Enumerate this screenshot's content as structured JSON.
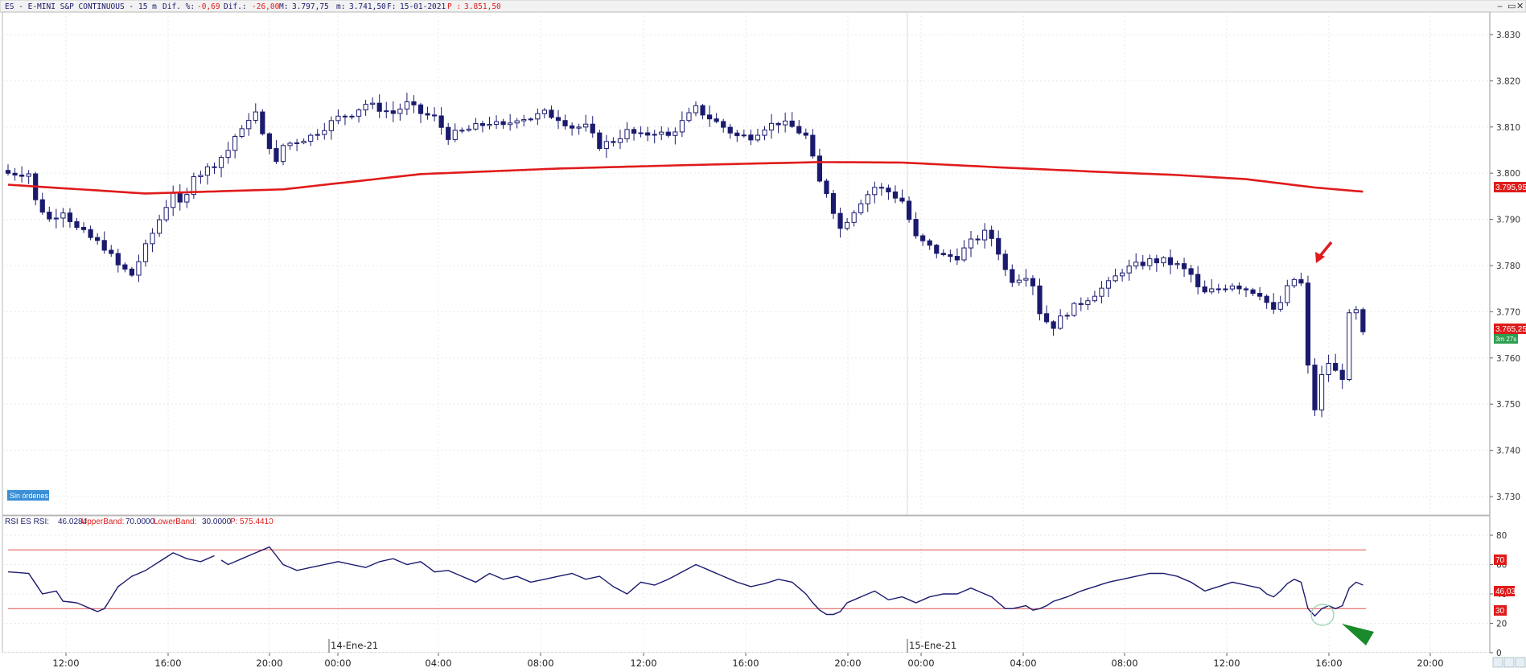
{
  "header": {
    "symbol": "ES - E-MINI S&P CONTINUOUS -",
    "interval": "15 m",
    "dif_pct_label": "Dif. %:",
    "dif_pct_value": "-0,69",
    "dif_label": "Dif.:",
    "dif_value": "-26,00",
    "max_label": "M:",
    "max_value": "3.797,75",
    "min_label": "m:",
    "min_value": "3.741,50",
    "date_label": "F:",
    "date_value": "15-01-2021",
    "close_label": "P :",
    "close_value": "3.851,50"
  },
  "badges": {
    "orders": "Sin órdenes",
    "ma_value": "3.795,95",
    "price_value": "3.765,25",
    "countdown": "3m 27s",
    "rsi_value": "46,03",
    "rsi_upper": "70",
    "rsi_lower": "30"
  },
  "rsi_header": {
    "name": "RSI ES RSI:",
    "value": "46.0284",
    "upper_label": "UpperBand:",
    "upper_value": "70.0000",
    "lower_label": "LowerBand:",
    "lower_value": "30.0000",
    "p_label": "P:",
    "p_value": "575.4410"
  },
  "colors": {
    "candle": "#1a1a6e",
    "ma": "#e01b1b",
    "rsi": "#1a1a6e",
    "bands": "#e05050",
    "grid": "#e8e8e8",
    "accent_red": "#e01b1b",
    "accent_green": "#1a8a2a",
    "orders_bg": "#3a8fd6"
  },
  "chart_data": [
    {
      "type": "candlestick",
      "yaxis_ticks": [
        "3.830",
        "3.820",
        "3.810",
        "3.800",
        "3.790",
        "3.780",
        "3.770",
        "3.760",
        "3.750",
        "3.740",
        "3.730"
      ],
      "ylim": [
        3726,
        3834
      ],
      "grid": true,
      "date_labels": [
        "14-Ene-21",
        "15-Ene-21"
      ],
      "time_ticks": [
        "12:00",
        "16:00",
        "20:00",
        "00:00",
        "04:00",
        "08:00",
        "12:00",
        "16:00",
        "20:00",
        "00:00",
        "04:00",
        "08:00",
        "12:00",
        "16:00",
        "20:00"
      ],
      "ohlc_anchors": [
        [
          0,
          3800
        ],
        [
          3,
          3800
        ],
        [
          4,
          3794
        ],
        [
          6,
          3790
        ],
        [
          8,
          3792
        ],
        [
          10,
          3788
        ],
        [
          12,
          3786
        ],
        [
          14,
          3784
        ],
        [
          16,
          3780
        ],
        [
          18,
          3778
        ],
        [
          20,
          3784
        ],
        [
          22,
          3790
        ],
        [
          24,
          3796
        ],
        [
          25,
          3793
        ],
        [
          26,
          3795
        ],
        [
          27,
          3800
        ],
        [
          28,
          3800
        ],
        [
          30,
          3802
        ],
        [
          32,
          3805
        ],
        [
          33,
          3808
        ],
        [
          34,
          3809
        ],
        [
          35,
          3812
        ],
        [
          36,
          3813
        ],
        [
          37,
          3808
        ],
        [
          38,
          3806
        ],
        [
          39,
          3802
        ],
        [
          40,
          3806
        ],
        [
          42,
          3807
        ],
        [
          44,
          3808
        ],
        [
          46,
          3810
        ],
        [
          48,
          3812
        ],
        [
          50,
          3813
        ],
        [
          52,
          3815
        ],
        [
          54,
          3814
        ],
        [
          56,
          3813
        ],
        [
          58,
          3815
        ],
        [
          60,
          3813
        ],
        [
          62,
          3812
        ],
        [
          64,
          3808
        ],
        [
          66,
          3809
        ],
        [
          68,
          3810
        ],
        [
          70,
          3811
        ],
        [
          72,
          3810
        ],
        [
          74,
          3812
        ],
        [
          76,
          3812
        ],
        [
          78,
          3813
        ],
        [
          80,
          3812
        ],
        [
          82,
          3810
        ],
        [
          84,
          3810
        ],
        [
          86,
          3806
        ],
        [
          88,
          3807
        ],
        [
          90,
          3809
        ],
        [
          92,
          3808
        ],
        [
          94,
          3809
        ],
        [
          96,
          3808
        ],
        [
          98,
          3811
        ],
        [
          100,
          3814
        ],
        [
          102,
          3812
        ],
        [
          104,
          3810
        ],
        [
          106,
          3808
        ],
        [
          108,
          3808
        ],
        [
          110,
          3810
        ],
        [
          112,
          3811
        ],
        [
          114,
          3810
        ],
        [
          116,
          3808
        ],
        [
          117,
          3803
        ],
        [
          118,
          3798
        ],
        [
          119,
          3796
        ],
        [
          120,
          3792
        ],
        [
          121,
          3788
        ],
        [
          122,
          3790
        ],
        [
          124,
          3794
        ],
        [
          126,
          3797
        ],
        [
          128,
          3796
        ],
        [
          130,
          3794
        ],
        [
          131,
          3790
        ],
        [
          132,
          3786
        ],
        [
          134,
          3784
        ],
        [
          136,
          3782
        ],
        [
          138,
          3782
        ],
        [
          140,
          3785
        ],
        [
          142,
          3787
        ],
        [
          143,
          3786
        ],
        [
          144,
          3783
        ],
        [
          145,
          3779
        ],
        [
          146,
          3777
        ],
        [
          148,
          3778
        ],
        [
          149,
          3776
        ],
        [
          150,
          3770
        ],
        [
          151,
          3768
        ],
        [
          152,
          3767
        ],
        [
          154,
          3770
        ],
        [
          156,
          3772
        ],
        [
          158,
          3774
        ],
        [
          160,
          3776
        ],
        [
          162,
          3779
        ],
        [
          164,
          3780
        ],
        [
          166,
          3781
        ],
        [
          168,
          3781
        ],
        [
          170,
          3780
        ],
        [
          172,
          3778
        ],
        [
          173,
          3775
        ],
        [
          174,
          3774
        ],
        [
          176,
          3775
        ],
        [
          178,
          3776
        ],
        [
          180,
          3775
        ],
        [
          182,
          3774
        ],
        [
          183,
          3772
        ],
        [
          184,
          3770
        ],
        [
          185,
          3772
        ],
        [
          186,
          3775
        ],
        [
          187,
          3777
        ],
        [
          188,
          3776
        ],
        [
          189,
          3758
        ],
        [
          190,
          3749
        ],
        [
          191,
          3756
        ],
        [
          192,
          3759
        ],
        [
          193,
          3757
        ],
        [
          194,
          3756
        ],
        [
          195,
          3769
        ],
        [
          196,
          3770
        ],
        [
          197,
          3765
        ]
      ]
    },
    {
      "type": "line",
      "name": "MA",
      "ylim": [
        3726,
        3834
      ],
      "anchors": [
        [
          0,
          3797.5
        ],
        [
          20,
          3795.6
        ],
        [
          40,
          3796.5
        ],
        [
          60,
          3799.8
        ],
        [
          80,
          3801
        ],
        [
          100,
          3801.8
        ],
        [
          118,
          3802.4
        ],
        [
          130,
          3802.3
        ],
        [
          145,
          3801.2
        ],
        [
          160,
          3800.2
        ],
        [
          170,
          3799.6
        ],
        [
          180,
          3798.7
        ],
        [
          190,
          3796.9
        ],
        [
          197,
          3796
        ]
      ]
    },
    {
      "type": "line",
      "name": "RSI",
      "ylim": [
        0,
        80
      ],
      "yaxis_ticks": [
        "80",
        "60",
        "40",
        "20",
        "0"
      ],
      "bands": [
        30,
        70
      ],
      "anchors": [
        [
          0,
          55
        ],
        [
          3,
          54
        ],
        [
          5,
          40
        ],
        [
          7,
          42
        ],
        [
          8,
          35
        ],
        [
          10,
          34
        ],
        [
          12,
          30
        ],
        [
          13,
          28
        ],
        [
          14,
          30
        ],
        [
          16,
          45
        ],
        [
          18,
          52
        ],
        [
          20,
          56
        ],
        [
          22,
          62
        ],
        [
          24,
          68
        ],
        [
          26,
          64
        ],
        [
          28,
          62
        ],
        [
          30,
          66
        ],
        [
          32,
          60
        ],
        [
          34,
          64
        ],
        [
          36,
          68
        ],
        [
          38,
          72
        ],
        [
          40,
          60
        ],
        [
          42,
          56
        ],
        [
          44,
          58
        ],
        [
          46,
          60
        ],
        [
          48,
          62
        ],
        [
          50,
          60
        ],
        [
          52,
          58
        ],
        [
          54,
          62
        ],
        [
          56,
          64
        ],
        [
          58,
          60
        ],
        [
          60,
          62
        ],
        [
          62,
          55
        ],
        [
          64,
          56
        ],
        [
          66,
          52
        ],
        [
          68,
          48
        ],
        [
          70,
          54
        ],
        [
          72,
          50
        ],
        [
          74,
          52
        ],
        [
          76,
          48
        ],
        [
          78,
          50
        ],
        [
          80,
          52
        ],
        [
          82,
          54
        ],
        [
          84,
          50
        ],
        [
          86,
          52
        ],
        [
          88,
          45
        ],
        [
          90,
          40
        ],
        [
          92,
          48
        ],
        [
          94,
          46
        ],
        [
          96,
          50
        ],
        [
          98,
          55
        ],
        [
          100,
          60
        ],
        [
          102,
          56
        ],
        [
          104,
          52
        ],
        [
          106,
          48
        ],
        [
          108,
          45
        ],
        [
          110,
          47
        ],
        [
          112,
          50
        ],
        [
          114,
          48
        ],
        [
          116,
          40
        ],
        [
          117,
          34
        ],
        [
          118,
          29
        ],
        [
          119,
          26
        ],
        [
          120,
          26
        ],
        [
          121,
          28
        ],
        [
          122,
          34
        ],
        [
          124,
          38
        ],
        [
          126,
          42
        ],
        [
          128,
          36
        ],
        [
          130,
          38
        ],
        [
          132,
          34
        ],
        [
          134,
          38
        ],
        [
          136,
          40
        ],
        [
          138,
          40
        ],
        [
          140,
          44
        ],
        [
          142,
          40
        ],
        [
          143,
          38
        ],
        [
          144,
          34
        ],
        [
          145,
          30
        ],
        [
          146,
          30
        ],
        [
          148,
          32
        ],
        [
          149,
          29
        ],
        [
          150,
          30
        ],
        [
          151,
          32
        ],
        [
          152,
          35
        ],
        [
          154,
          38
        ],
        [
          156,
          42
        ],
        [
          158,
          45
        ],
        [
          160,
          48
        ],
        [
          162,
          50
        ],
        [
          164,
          52
        ],
        [
          166,
          54
        ],
        [
          168,
          54
        ],
        [
          170,
          52
        ],
        [
          172,
          48
        ],
        [
          173,
          45
        ],
        [
          174,
          42
        ],
        [
          176,
          45
        ],
        [
          178,
          48
        ],
        [
          180,
          46
        ],
        [
          182,
          44
        ],
        [
          183,
          40
        ],
        [
          184,
          38
        ],
        [
          185,
          42
        ],
        [
          186,
          47
        ],
        [
          187,
          50
        ],
        [
          188,
          48
        ],
        [
          189,
          30
        ],
        [
          190,
          25
        ],
        [
          191,
          30
        ],
        [
          192,
          32
        ],
        [
          193,
          30
        ],
        [
          194,
          32
        ],
        [
          195,
          44
        ],
        [
          196,
          48
        ],
        [
          197,
          46
        ]
      ]
    }
  ]
}
